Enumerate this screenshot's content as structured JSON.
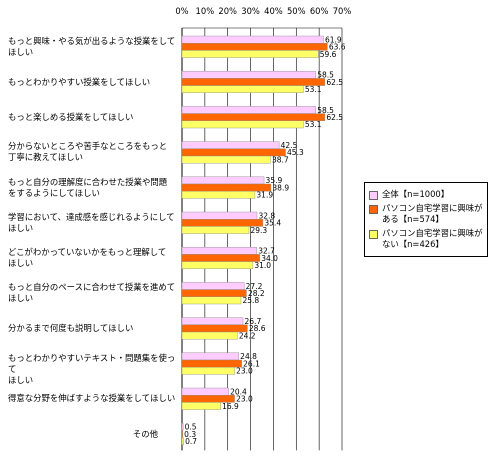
{
  "chart_data": {
    "type": "bar",
    "orientation": "horizontal",
    "title": "",
    "xlim": [
      0,
      70
    ],
    "x_ticks": [
      "0%",
      "10%",
      "20%",
      "30%",
      "40%",
      "50%",
      "60%",
      "70%"
    ],
    "categories": [
      [
        "もっと興味・やる気が出るような授業をして",
        "ほしい"
      ],
      [
        "もっとわかりやすい授業をしてほしい"
      ],
      [
        "もっと楽しめる授業をしてほしい"
      ],
      [
        "分からないところや苦手なところをもっと",
        "丁寧に教えてほしい"
      ],
      [
        "もっと自分の理解度に合わせた授業や問題",
        "をするようにしてほしい"
      ],
      [
        "学習において、達成感を感じれるようにして",
        "ほしい"
      ],
      [
        "どこがわかっていないかをもっと理解して",
        "ほしい"
      ],
      [
        "もっと自分のペースに合わせて授業を進めて",
        "ほしい"
      ],
      [
        "分かるまで何度も説明してほしい"
      ],
      [
        "もっとわかりやすいテキスト・問題集を使って",
        "ほしい"
      ],
      [
        "得意な分野を伸ばすような授業をしてほしい"
      ],
      [
        "その他"
      ]
    ],
    "series": [
      {
        "name": "全体【n=1000】",
        "color": "#ffccff",
        "values": [
          61.9,
          58.5,
          58.5,
          42.5,
          35.9,
          32.8,
          32.7,
          27.2,
          26.7,
          24.8,
          20.4,
          0.5
        ],
        "labels": [
          "61.9",
          "58.5",
          "58.5",
          "42.5",
          "35.9",
          "32.8",
          "32.7",
          "27.2",
          "26.7",
          "24.8",
          "20.4",
          "0.5"
        ]
      },
      {
        "name": "パソコン自宅学習に興味がある【n=574】",
        "color": "#ff6600",
        "values": [
          63.6,
          62.5,
          62.5,
          45.3,
          38.9,
          35.4,
          34.0,
          28.2,
          28.6,
          26.1,
          23.0,
          0.3
        ],
        "labels": [
          "63.6",
          "62.5",
          "62.5",
          "45.3",
          "38.9",
          "35.4",
          "34.0",
          "28.2",
          "28.6",
          "26.1",
          "23.0",
          "0.3"
        ]
      },
      {
        "name": "パソコン自宅学習に興味がない【n=426】",
        "color": "#ffff66",
        "values": [
          59.6,
          53.1,
          53.1,
          38.7,
          31.9,
          29.3,
          31.0,
          25.8,
          24.2,
          23.0,
          16.9,
          0.7
        ],
        "labels": [
          "59.6",
          "53.1",
          "53.1",
          "38.7",
          "31.9",
          "29.3",
          "31.0",
          "25.8",
          "24.2",
          "23.0",
          "16.9",
          "0.7"
        ]
      }
    ],
    "legend_position": "right"
  }
}
